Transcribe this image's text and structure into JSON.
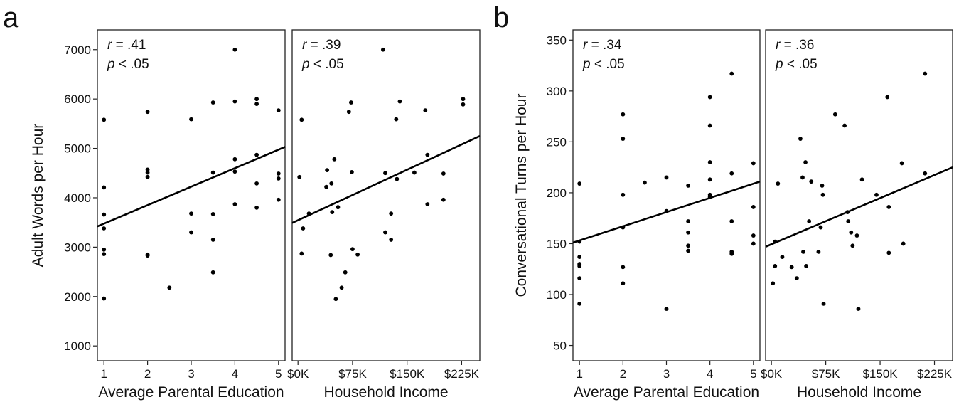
{
  "panels": [
    {
      "letter": "a",
      "ylabel": "Adult Words per Hour"
    },
    {
      "letter": "b",
      "ylabel": "Conversational Turns per Hour"
    }
  ],
  "chart_data": [
    {
      "type": "scatter",
      "panel": "a",
      "xlabel": "Average Parental Education",
      "ylabel": "Adult Words per Hour",
      "xlim": [
        0.85,
        5.15
      ],
      "ylim": [
        700,
        7400
      ],
      "xticks": [
        1,
        2,
        3,
        4,
        5
      ],
      "xtick_labels": [
        "1",
        "2",
        "3",
        "4",
        "5"
      ],
      "yticks": [
        1000,
        2000,
        3000,
        4000,
        5000,
        6000,
        7000
      ],
      "ytick_labels": [
        "1000",
        "2000",
        "3000",
        "4000",
        "5000",
        "6000",
        "7000"
      ],
      "r_text": "r = .41",
      "p_text": "p < .05",
      "fit_line": [
        [
          0.85,
          3420
        ],
        [
          5.15,
          5030
        ]
      ],
      "points": [
        [
          1,
          5580
        ],
        [
          1,
          4210
        ],
        [
          1,
          3660
        ],
        [
          1,
          3380
        ],
        [
          1,
          2950
        ],
        [
          1,
          2860
        ],
        [
          1,
          1960
        ],
        [
          2,
          5740
        ],
        [
          2,
          4570
        ],
        [
          2,
          4510
        ],
        [
          2,
          4420
        ],
        [
          2,
          2850
        ],
        [
          2,
          2830
        ],
        [
          2.5,
          2180
        ],
        [
          3,
          5590
        ],
        [
          3,
          3680
        ],
        [
          3,
          3300
        ],
        [
          3.5,
          5930
        ],
        [
          3.5,
          4510
        ],
        [
          3.5,
          3670
        ],
        [
          3.5,
          3150
        ],
        [
          3.5,
          2490
        ],
        [
          4,
          7000
        ],
        [
          4,
          5950
        ],
        [
          4,
          4780
        ],
        [
          4,
          4530
        ],
        [
          4,
          3870
        ],
        [
          4.5,
          6000
        ],
        [
          4.5,
          5900
        ],
        [
          4.5,
          4870
        ],
        [
          4.5,
          4290
        ],
        [
          4.5,
          3800
        ],
        [
          5,
          5770
        ],
        [
          5,
          4490
        ],
        [
          5,
          4390
        ],
        [
          5,
          3960
        ]
      ]
    },
    {
      "type": "scatter",
      "panel": "a",
      "xlabel": "Household Income",
      "ylabel": "",
      "xlim": [
        -8,
        250
      ],
      "ylim": [
        700,
        7400
      ],
      "xticks": [
        0,
        75,
        150,
        225
      ],
      "xtick_labels": [
        "$0K",
        "$75K",
        "$150K",
        "$225K"
      ],
      "yticks": [
        1000,
        2000,
        3000,
        4000,
        5000,
        6000,
        7000
      ],
      "r_text": "r = .39",
      "p_text": "p < .05",
      "fit_line": [
        [
          -8,
          3490
        ],
        [
          250,
          5250
        ]
      ],
      "points": [
        [
          2,
          4420
        ],
        [
          5,
          5580
        ],
        [
          5,
          2870
        ],
        [
          7,
          3380
        ],
        [
          15,
          3680
        ],
        [
          39,
          4220
        ],
        [
          40,
          4560
        ],
        [
          45,
          2840
        ],
        [
          46,
          4290
        ],
        [
          47,
          3710
        ],
        [
          50,
          4780
        ],
        [
          52,
          1950
        ],
        [
          55,
          3810
        ],
        [
          60,
          2180
        ],
        [
          65,
          2490
        ],
        [
          70,
          5740
        ],
        [
          73,
          5930
        ],
        [
          74,
          4520
        ],
        [
          75,
          2960
        ],
        [
          82,
          2850
        ],
        [
          117,
          7000
        ],
        [
          120,
          4500
        ],
        [
          120,
          3300
        ],
        [
          128,
          3680
        ],
        [
          128,
          3150
        ],
        [
          135,
          5590
        ],
        [
          136,
          4380
        ],
        [
          140,
          5950
        ],
        [
          160,
          4510
        ],
        [
          175,
          5770
        ],
        [
          178,
          4870
        ],
        [
          178,
          3870
        ],
        [
          200,
          4490
        ],
        [
          200,
          3960
        ],
        [
          227,
          6000
        ],
        [
          227,
          5890
        ]
      ]
    },
    {
      "type": "scatter",
      "panel": "b",
      "xlabel": "Average Parental Education",
      "ylabel": "Conversational Turns per Hour",
      "xlim": [
        0.85,
        5.15
      ],
      "ylim": [
        35,
        360
      ],
      "xticks": [
        1,
        2,
        3,
        4,
        5
      ],
      "xtick_labels": [
        "1",
        "2",
        "3",
        "4",
        "5"
      ],
      "yticks": [
        50,
        100,
        150,
        200,
        250,
        300,
        350
      ],
      "ytick_labels": [
        "50",
        "100",
        "150",
        "200",
        "250",
        "300",
        "350"
      ],
      "r_text": "r = .34",
      "p_text": "p < .05",
      "fit_line": [
        [
          0.85,
          151
        ],
        [
          5.15,
          211
        ]
      ],
      "points": [
        [
          1,
          209
        ],
        [
          1,
          152
        ],
        [
          1,
          137
        ],
        [
          1,
          130
        ],
        [
          1,
          128
        ],
        [
          1,
          116
        ],
        [
          1,
          91
        ],
        [
          2,
          277
        ],
        [
          2,
          253
        ],
        [
          2,
          198
        ],
        [
          2,
          166
        ],
        [
          2,
          127
        ],
        [
          2,
          111
        ],
        [
          2.5,
          210
        ],
        [
          3,
          215
        ],
        [
          3,
          182
        ],
        [
          3,
          86
        ],
        [
          3.5,
          207
        ],
        [
          3.5,
          172
        ],
        [
          3.5,
          161
        ],
        [
          3.5,
          148
        ],
        [
          3.5,
          143
        ],
        [
          4,
          294
        ],
        [
          4,
          266
        ],
        [
          4,
          230
        ],
        [
          4,
          213
        ],
        [
          4,
          198
        ],
        [
          4,
          196
        ],
        [
          4.5,
          317
        ],
        [
          4.5,
          219
        ],
        [
          4.5,
          172
        ],
        [
          4.5,
          142
        ],
        [
          4.5,
          140
        ],
        [
          5,
          229
        ],
        [
          5,
          186
        ],
        [
          5,
          158
        ],
        [
          5,
          150
        ]
      ]
    },
    {
      "type": "scatter",
      "panel": "b",
      "xlabel": "Household Income",
      "ylabel": "",
      "xlim": [
        -8,
        250
      ],
      "ylim": [
        35,
        360
      ],
      "xticks": [
        0,
        75,
        150,
        225
      ],
      "xtick_labels": [
        "$0K",
        "$75K",
        "$150K",
        "$225K"
      ],
      "yticks": [
        50,
        100,
        150,
        200,
        250,
        300,
        350
      ],
      "r_text": "r = .36",
      "p_text": "p < .05",
      "fit_line": [
        [
          -8,
          147
        ],
        [
          250,
          225
        ]
      ],
      "points": [
        [
          2,
          111
        ],
        [
          5,
          152
        ],
        [
          5,
          128
        ],
        [
          9,
          209
        ],
        [
          15,
          137
        ],
        [
          28,
          127
        ],
        [
          35,
          116
        ],
        [
          40,
          253
        ],
        [
          43,
          215
        ],
        [
          44,
          142
        ],
        [
          47,
          230
        ],
        [
          48,
          128
        ],
        [
          52,
          172
        ],
        [
          55,
          211
        ],
        [
          65,
          142
        ],
        [
          68,
          166
        ],
        [
          70,
          207
        ],
        [
          71,
          198
        ],
        [
          72,
          91
        ],
        [
          88,
          277
        ],
        [
          101,
          266
        ],
        [
          105,
          181
        ],
        [
          106,
          172
        ],
        [
          110,
          161
        ],
        [
          112,
          148
        ],
        [
          118,
          158
        ],
        [
          120,
          86
        ],
        [
          125,
          213
        ],
        [
          145,
          198
        ],
        [
          160,
          294
        ],
        [
          162,
          186
        ],
        [
          162,
          141
        ],
        [
          180,
          229
        ],
        [
          182,
          150
        ],
        [
          212,
          317
        ],
        [
          212,
          219
        ]
      ]
    }
  ]
}
